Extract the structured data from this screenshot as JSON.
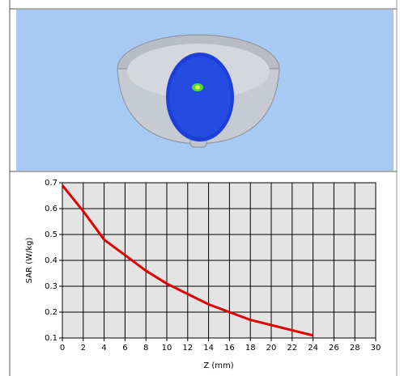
{
  "chart_data": {
    "type": "line",
    "x_label": "Z (mm)",
    "y_label": "SAR (W/kg)",
    "x": [
      0,
      2,
      4,
      6,
      8,
      10,
      12,
      14,
      16,
      18,
      20,
      22,
      24
    ],
    "values": [
      0.69,
      0.59,
      0.48,
      0.42,
      0.36,
      0.31,
      0.27,
      0.23,
      0.2,
      0.17,
      0.15,
      0.13,
      0.11
    ],
    "color": "#e00000",
    "xlim": [
      0,
      30
    ],
    "xticks": [
      0,
      2,
      4,
      6,
      8,
      10,
      12,
      14,
      16,
      18,
      20,
      22,
      24,
      26,
      28,
      30
    ],
    "ylim": [
      0.1,
      0.7
    ],
    "yticks": [
      0.1,
      0.2,
      0.3,
      0.4,
      0.5,
      0.6,
      0.7
    ],
    "grid": true
  }
}
